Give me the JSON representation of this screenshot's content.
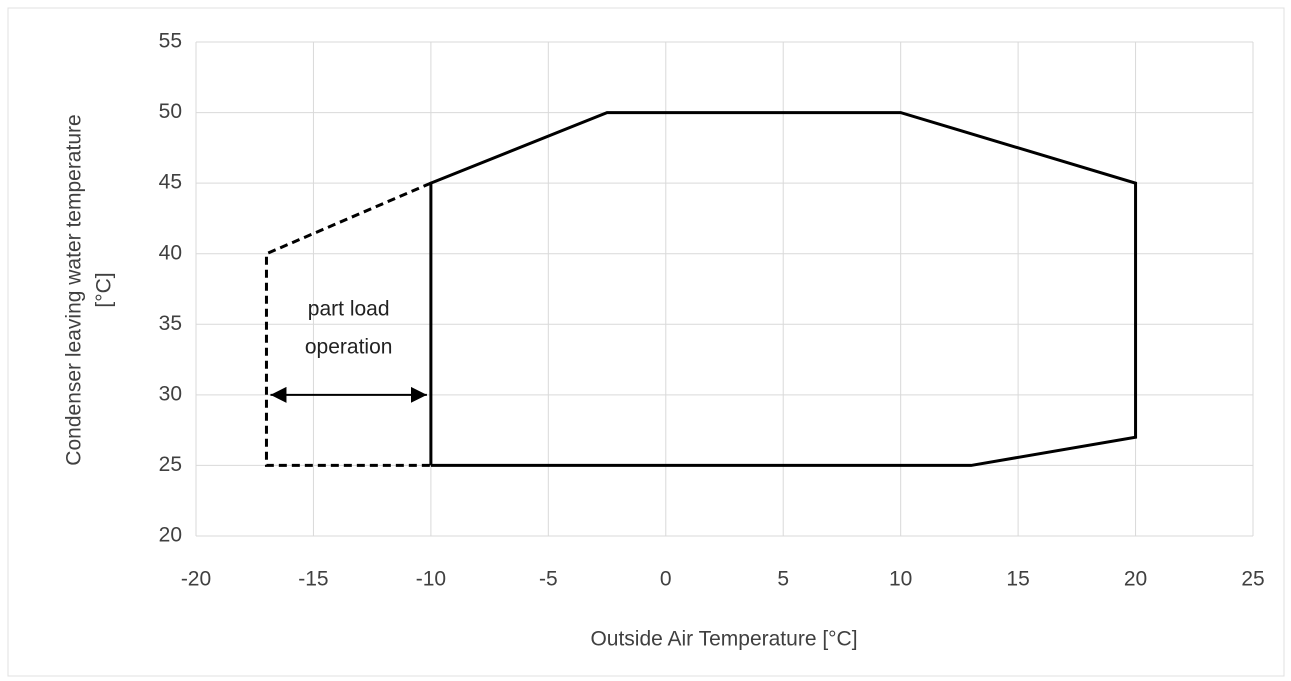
{
  "chart_data": {
    "type": "line",
    "xlabel": "Outside Air Temperature  [°C]",
    "ylabel": [
      "Condenser leaving water temperature",
      "[°C]"
    ],
    "xlim": [
      -20,
      25
    ],
    "xticks": [
      -20,
      -15,
      -10,
      -5,
      0,
      5,
      10,
      15,
      20,
      25
    ],
    "ylim": [
      20,
      55
    ],
    "yticks": [
      20,
      25,
      30,
      35,
      40,
      45,
      50,
      55
    ],
    "grid": true,
    "series": [
      {
        "color": "#000000",
        "dashed": false,
        "x": [
          -10,
          -10,
          -2.5,
          10,
          20,
          20,
          13,
          -10
        ],
        "values": [
          25,
          45,
          50,
          50,
          45,
          27,
          25,
          25
        ]
      },
      {
        "color": "#000000",
        "dashed": true,
        "x": [
          -10,
          -17,
          -17,
          -10
        ],
        "values": [
          45,
          40,
          25,
          25
        ]
      }
    ],
    "annotation": {
      "text": [
        "part load",
        "operation"
      ],
      "arrow": {
        "x": [
          -17,
          -10
        ],
        "y": 30
      }
    }
  }
}
